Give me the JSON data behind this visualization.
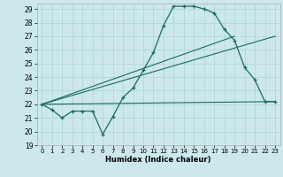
{
  "title": "",
  "xlabel": "Humidex (Indice chaleur)",
  "bg_color": "#cce8ec",
  "line_color": "#1a6b5e",
  "grid_color": "#aad4d8",
  "xlim": [
    -0.5,
    23.5
  ],
  "ylim": [
    19,
    29.4
  ],
  "xticks": [
    0,
    1,
    2,
    3,
    4,
    5,
    6,
    7,
    8,
    9,
    10,
    11,
    12,
    13,
    14,
    15,
    16,
    17,
    18,
    19,
    20,
    21,
    22,
    23
  ],
  "yticks": [
    19,
    20,
    21,
    22,
    23,
    24,
    25,
    26,
    27,
    28,
    29
  ],
  "line1_x": [
    0,
    1,
    2,
    3,
    4,
    5,
    6,
    7,
    8,
    9,
    10,
    11,
    12,
    13,
    14,
    15,
    16,
    17,
    18,
    19,
    20,
    21,
    22,
    23
  ],
  "line1_y": [
    22.0,
    21.6,
    21.0,
    21.5,
    21.5,
    21.5,
    19.8,
    21.1,
    22.5,
    23.2,
    24.5,
    25.8,
    27.8,
    29.2,
    29.2,
    29.2,
    29.0,
    28.7,
    27.5,
    26.7,
    24.7,
    23.8,
    22.2,
    22.2
  ],
  "line2_x": [
    0,
    19
  ],
  "line2_y": [
    22.0,
    27.0
  ],
  "line3_x": [
    0,
    23
  ],
  "line3_y": [
    22.0,
    27.0
  ],
  "line4_x": [
    0,
    23
  ],
  "line4_y": [
    22.0,
    22.2
  ]
}
